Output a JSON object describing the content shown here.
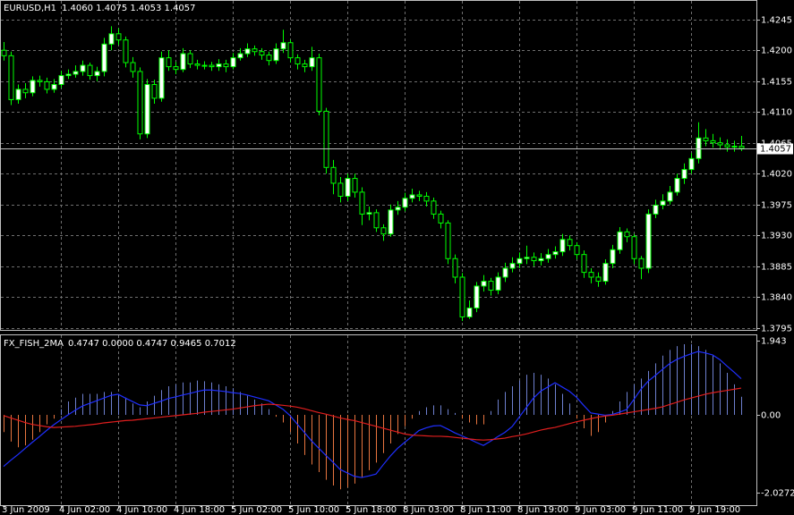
{
  "chart_data": [
    {
      "type": "candlestick",
      "title": "EURUSD,H1",
      "subtitle": "1.4060 1.4075 1.4053 1.4057",
      "open": [
        1.42,
        1.4192,
        1.4128,
        1.4143,
        1.4138,
        1.4156,
        1.4154,
        1.4143,
        1.415,
        1.4163,
        1.4165,
        1.4169,
        1.4178,
        1.4163,
        1.4169,
        1.4209,
        1.4224,
        1.4215,
        1.4182,
        1.4169,
        1.4078,
        1.415,
        1.413,
        1.4189,
        1.4176,
        1.4172,
        1.4195,
        1.418,
        1.4178,
        1.4178,
        1.4176,
        1.418,
        1.4176,
        1.4189,
        1.4195,
        1.4202,
        1.4198,
        1.4193,
        1.4185,
        1.4202,
        1.4211,
        1.4189,
        1.418,
        1.4176,
        1.4189,
        1.4111,
        1.4029,
        1.4006,
        1.3987,
        1.4013,
        1.3993,
        1.3961,
        1.3963,
        1.3941,
        1.3932,
        1.3967,
        1.3971,
        1.3984,
        1.3989,
        1.3987,
        1.398,
        1.3961,
        1.3948,
        1.3896,
        1.3869,
        1.3811,
        1.3824,
        1.3856,
        1.3863,
        1.385,
        1.3869,
        1.3882,
        1.3889,
        1.3896,
        1.3898,
        1.3893,
        1.3896,
        1.3902,
        1.3906,
        1.3924,
        1.3915,
        1.3902,
        1.3876,
        1.3869,
        1.3863,
        1.3889,
        1.3909,
        1.3935,
        1.3928,
        1.3896,
        1.3882,
        1.3961,
        1.3974,
        1.398,
        1.3993,
        1.4013,
        1.4026,
        1.4042,
        1.4072,
        1.4068,
        1.4065,
        1.4062,
        1.4059,
        1.406
      ],
      "high": [
        1.4212,
        1.4198,
        1.415,
        1.4152,
        1.4162,
        1.4163,
        1.416,
        1.4158,
        1.417,
        1.4172,
        1.4178,
        1.4185,
        1.4182,
        1.4176,
        1.4218,
        1.4235,
        1.4232,
        1.422,
        1.419,
        1.4175,
        1.4158,
        1.4157,
        1.4198,
        1.42,
        1.4183,
        1.4203,
        1.42,
        1.4186,
        1.4184,
        1.4183,
        1.4187,
        1.4186,
        1.4196,
        1.4203,
        1.421,
        1.4207,
        1.4203,
        1.4198,
        1.421,
        1.423,
        1.4215,
        1.4194,
        1.4186,
        1.4205,
        1.4195,
        1.4116,
        1.404,
        1.4015,
        1.402,
        1.402,
        1.4,
        1.3972,
        1.3968,
        1.3946,
        1.3975,
        1.398,
        1.3992,
        1.3998,
        1.3995,
        1.3993,
        1.3985,
        1.3966,
        1.3952,
        1.3902,
        1.3875,
        1.3835,
        1.3862,
        1.3872,
        1.3868,
        1.3876,
        1.389,
        1.3898,
        1.3905,
        1.3915,
        1.3905,
        1.3904,
        1.391,
        1.3914,
        1.3932,
        1.393,
        1.392,
        1.3908,
        1.3882,
        1.3876,
        1.3895,
        1.3916,
        1.3942,
        1.394,
        1.3932,
        1.39,
        1.3968,
        1.3982,
        1.399,
        1.4002,
        1.402,
        1.4035,
        1.405,
        1.4095,
        1.4085,
        1.4078,
        1.4073,
        1.407,
        1.4068,
        1.4075
      ],
      "low": [
        1.4185,
        1.412,
        1.4122,
        1.413,
        1.4133,
        1.4147,
        1.4137,
        1.4138,
        1.4145,
        1.4158,
        1.416,
        1.4163,
        1.4157,
        1.4155,
        1.4162,
        1.42,
        1.4208,
        1.4175,
        1.416,
        1.407,
        1.4072,
        1.4122,
        1.4125,
        1.417,
        1.4165,
        1.4168,
        1.4174,
        1.4172,
        1.4172,
        1.417,
        1.417,
        1.4168,
        1.4172,
        1.4185,
        1.419,
        1.4192,
        1.4186,
        1.4178,
        1.418,
        1.4196,
        1.4182,
        1.4172,
        1.4168,
        1.417,
        1.4105,
        1.402,
        1.399,
        1.3978,
        1.398,
        1.3985,
        1.3945,
        1.3952,
        1.3935,
        1.3922,
        1.3928,
        1.396,
        1.3965,
        1.3978,
        1.398,
        1.3972,
        1.3954,
        1.394,
        1.3888,
        1.386,
        1.3805,
        1.3808,
        1.3818,
        1.3848,
        1.3842,
        1.3844,
        1.3862,
        1.3876,
        1.3882,
        1.3888,
        1.3885,
        1.3886,
        1.389,
        1.3896,
        1.39,
        1.3908,
        1.3895,
        1.3868,
        1.386,
        1.3855,
        1.3858,
        1.3882,
        1.3903,
        1.392,
        1.3888,
        1.3866,
        1.3875,
        1.3955,
        1.3968,
        1.3975,
        1.3988,
        1.4005,
        1.402,
        1.4035,
        1.406,
        1.4058,
        1.4055,
        1.4052,
        1.4052,
        1.4053
      ],
      "close": [
        1.4192,
        1.4128,
        1.4143,
        1.4138,
        1.4156,
        1.4154,
        1.4143,
        1.415,
        1.4163,
        1.4165,
        1.4169,
        1.4178,
        1.4163,
        1.4169,
        1.4209,
        1.4224,
        1.4215,
        1.4182,
        1.4169,
        1.4078,
        1.415,
        1.413,
        1.4189,
        1.4176,
        1.4172,
        1.4195,
        1.418,
        1.4178,
        1.4178,
        1.4176,
        1.418,
        1.4176,
        1.4189,
        1.4195,
        1.4202,
        1.4198,
        1.4193,
        1.4185,
        1.4202,
        1.4211,
        1.4189,
        1.418,
        1.4176,
        1.4189,
        1.4111,
        1.4029,
        1.4006,
        1.3987,
        1.4013,
        1.3993,
        1.3961,
        1.3963,
        1.3941,
        1.3932,
        1.3967,
        1.3971,
        1.3984,
        1.3989,
        1.3987,
        1.398,
        1.3961,
        1.3948,
        1.3896,
        1.3869,
        1.3811,
        1.3824,
        1.3856,
        1.3863,
        1.385,
        1.3869,
        1.3882,
        1.3889,
        1.3896,
        1.3898,
        1.3893,
        1.3896,
        1.3902,
        1.3906,
        1.3924,
        1.3915,
        1.3902,
        1.3876,
        1.3869,
        1.3863,
        1.3889,
        1.3909,
        1.3935,
        1.3928,
        1.3896,
        1.3882,
        1.3961,
        1.3974,
        1.398,
        1.3993,
        1.4013,
        1.4026,
        1.4042,
        1.4072,
        1.4068,
        1.4065,
        1.4062,
        1.4059,
        1.406,
        1.4057
      ],
      "current_price": 1.4057,
      "ylim": [
        1.3792,
        1.4272
      ],
      "yticks": [
        1.4245,
        {
          "value": 1.42,
          "label": "1.4200"
        },
        1.4155,
        {
          "value": 1.411,
          "label": "1.4110"
        },
        1.4065,
        {
          "value": 1.402,
          "label": "1.4020"
        },
        1.3975,
        {
          "value": 1.393,
          "label": "1.3930"
        },
        1.3885,
        {
          "value": 1.384,
          "label": "1.3840"
        },
        1.3795
      ],
      "grid": true,
      "bull_color": "#ffffff",
      "bear_color": "#000000",
      "wick_color": "#00ff00"
    },
    {
      "type": "indicator",
      "title": "FX_FISH_2MA",
      "subtitle": "0.4747 0.0000 0.4747 0.9465 0.7012",
      "categories": [
        "3 Jun 2009",
        null,
        null,
        null,
        null,
        null,
        null,
        null,
        "4 Jun 02:00",
        null,
        null,
        null,
        null,
        null,
        null,
        null,
        "4 Jun 10:00",
        null,
        null,
        null,
        null,
        null,
        null,
        null,
        "4 Jun 18:00",
        null,
        null,
        null,
        null,
        null,
        null,
        null,
        "5 Jun 02:00",
        null,
        null,
        null,
        null,
        null,
        null,
        null,
        "5 Jun 10:00",
        null,
        null,
        null,
        null,
        null,
        null,
        null,
        "5 Jun 18:00",
        null,
        null,
        null,
        null,
        null,
        null,
        null,
        "8 Jun 03:00",
        null,
        null,
        null,
        null,
        null,
        null,
        null,
        "8 Jun 11:00",
        null,
        null,
        null,
        null,
        null,
        null,
        null,
        "8 Jun 19:00",
        null,
        null,
        null,
        null,
        null,
        null,
        null,
        "9 Jun 03:00",
        null,
        null,
        null,
        null,
        null,
        null,
        null,
        "9 Jun 11:00",
        null,
        null,
        null,
        null,
        null,
        null,
        null,
        "9 Jun 19:00",
        null,
        null,
        null,
        null,
        null,
        null,
        null
      ],
      "bars": {
        "color_positive": "#6e80cf",
        "color_negative": "#e8753f",
        "values": [
          -0.45,
          -0.7,
          -0.85,
          -0.8,
          -0.65,
          -0.45,
          -0.25,
          -0.1,
          0.15,
          0.35,
          0.45,
          0.55,
          0.55,
          0.55,
          0.6,
          0.6,
          0.55,
          0.45,
          0.3,
          0.2,
          0.35,
          0.5,
          0.65,
          0.75,
          0.8,
          0.85,
          0.85,
          0.9,
          0.88,
          0.85,
          0.8,
          0.75,
          0.7,
          0.6,
          0.5,
          0.4,
          0.3,
          0.15,
          -0.05,
          -0.2,
          -0.45,
          -0.75,
          -1.05,
          -1.3,
          -1.5,
          -1.7,
          -1.85,
          -1.95,
          -1.9,
          -1.8,
          -1.65,
          -1.45,
          -1.25,
          -1,
          -0.75,
          -0.5,
          -0.3,
          -0.1,
          0.1,
          0.2,
          0.25,
          0.25,
          0.15,
          0.05,
          -0.1,
          -0.2,
          -0.25,
          -0.25,
          0.1,
          0.4,
          0.6,
          0.75,
          0.9,
          1.05,
          1.1,
          1.05,
          0.95,
          0.8,
          0.55,
          0.3,
          -0.1,
          -0.35,
          -0.55,
          -0.45,
          -0.2,
          0.1,
          0.35,
          0.6,
          0.8,
          0.95,
          1.15,
          1.35,
          1.55,
          1.7,
          1.8,
          1.85,
          1.85,
          1.8,
          1.7,
          1.55,
          1.35,
          1.1,
          0.8,
          0.4747
        ]
      },
      "lines": [
        {
          "color": "#1f2fff",
          "values": [
            -1.35,
            -1.19,
            -1.04,
            -0.88,
            -0.72,
            -0.57,
            -0.41,
            -0.26,
            -0.13,
            0,
            0.12,
            0.23,
            0.3,
            0.37,
            0.44,
            0.51,
            0.54,
            0.44,
            0.35,
            0.26,
            0.24,
            0.3,
            0.36,
            0.43,
            0.47,
            0.52,
            0.56,
            0.61,
            0.65,
            0.65,
            0.63,
            0.61,
            0.58,
            0.56,
            0.52,
            0.47,
            0.42,
            0.37,
            0.26,
            0.15,
            -0.02,
            -0.24,
            -0.46,
            -0.68,
            -0.87,
            -1.06,
            -1.24,
            -1.43,
            -1.52,
            -1.61,
            -1.64,
            -1.6,
            -1.55,
            -1.31,
            -1.08,
            -0.88,
            -0.72,
            -0.57,
            -0.41,
            -0.34,
            -0.29,
            -0.28,
            -0.37,
            -0.47,
            -0.55,
            -0.63,
            -0.72,
            -0.8,
            -0.69,
            -0.57,
            -0.46,
            -0.31,
            -0.06,
            0.19,
            0.44,
            0.62,
            0.73,
            0.84,
            0.73,
            0.62,
            0.46,
            0.25,
            0.05,
            0.02,
            -0.01,
            0.01,
            0.07,
            0.14,
            0.4,
            0.67,
            0.88,
            1.03,
            1.19,
            1.34,
            1.45,
            1.53,
            1.6,
            1.66,
            1.62,
            1.57,
            1.45,
            1.28,
            1.12,
            0.9465
          ]
        },
        {
          "color": "#e01e1e",
          "values": [
            -0.02,
            -0.08,
            -0.14,
            -0.2,
            -0.25,
            -0.28,
            -0.31,
            -0.33,
            -0.32,
            -0.31,
            -0.3,
            -0.28,
            -0.26,
            -0.24,
            -0.21,
            -0.19,
            -0.17,
            -0.15,
            -0.14,
            -0.12,
            -0.1,
            -0.08,
            -0.06,
            -0.04,
            -0.02,
            0,
            0.02,
            0.04,
            0.07,
            0.09,
            0.11,
            0.13,
            0.15,
            0.18,
            0.21,
            0.24,
            0.26,
            0.28,
            0.27,
            0.25,
            0.23,
            0.2,
            0.16,
            0.11,
            0.06,
            0.02,
            -0.03,
            -0.08,
            -0.12,
            -0.15,
            -0.2,
            -0.25,
            -0.3,
            -0.35,
            -0.4,
            -0.45,
            -0.5,
            -0.53,
            -0.54,
            -0.55,
            -0.56,
            -0.56,
            -0.57,
            -0.59,
            -0.61,
            -0.63,
            -0.65,
            -0.66,
            -0.65,
            -0.63,
            -0.61,
            -0.57,
            -0.54,
            -0.5,
            -0.45,
            -0.4,
            -0.36,
            -0.33,
            -0.28,
            -0.23,
            -0.18,
            -0.14,
            -0.1,
            -0.06,
            -0.03,
            -0.01,
            0.02,
            0.05,
            0.08,
            0.11,
            0.14,
            0.17,
            0.21,
            0.27,
            0.33,
            0.39,
            0.44,
            0.49,
            0.54,
            0.58,
            0.61,
            0.64,
            0.67,
            0.7012
          ]
        }
      ],
      "ylim": [
        -2.365,
        2.084
      ],
      "yticks": [
        1.943,
        {
          "value": 0,
          "label": "0.00"
        },
        -2.0272
      ],
      "grid": true
    }
  ]
}
